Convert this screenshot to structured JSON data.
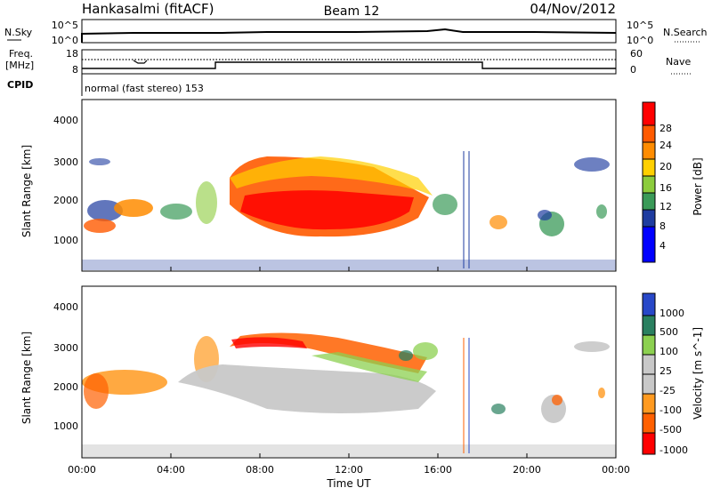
{
  "header": {
    "station": "Hankasalmi (fitACF)",
    "beam": "Beam 12",
    "date": "04/Nov/2012"
  },
  "noise_panel": {
    "left_label": "N.Sky",
    "right_label": "N.Search",
    "left_ticks": [
      "10^5",
      "10^0"
    ],
    "right_ticks": [
      "10^5",
      "10^0"
    ]
  },
  "freq_panel": {
    "left_label_line1": "Freq.",
    "left_label_line2": "[MHz]",
    "right_label": "Nave",
    "left_ticks": [
      "18",
      "8"
    ],
    "right_ticks": [
      "60",
      "0"
    ],
    "cpid_label": "CPID",
    "cpid_text": "normal (fast stereo) 153"
  },
  "chart_data": [
    {
      "type": "heatmap",
      "title": "",
      "ylabel": "Slant Range [km]",
      "ylim": [
        180,
        4600
      ],
      "yticks": [
        "4000",
        "3000",
        "2000",
        "1000"
      ],
      "colorbar_label": "Power [dB]",
      "colorbar_ticks": [
        "28",
        "24",
        "20",
        "16",
        "12",
        "8",
        "4"
      ],
      "colorbar_colors": [
        "#ff0000",
        "#ff5a00",
        "#ff8c00",
        "#ffd000",
        "#8ccc3c",
        "#3a9a58",
        "#1e3ca0",
        "#0000ff"
      ],
      "regions": [
        {
          "x": [
            0.1,
            5.5
          ],
          "y": [
            1500,
            2000
          ],
          "level": "low-mid"
        },
        {
          "x": [
            6.5,
            14.5
          ],
          "y": [
            1200,
            3000
          ],
          "level": "high"
        },
        {
          "x": [
            20.8,
            21.8
          ],
          "y": [
            1500,
            2100
          ],
          "level": "low"
        }
      ]
    },
    {
      "type": "heatmap",
      "title": "",
      "xlabel": "Time UT",
      "ylabel": "Slant Range [km]",
      "xlim": [
        0,
        24
      ],
      "ylim": [
        180,
        4600
      ],
      "xticks": [
        "00:00",
        "04:00",
        "08:00",
        "12:00",
        "16:00",
        "20:00",
        "00:00"
      ],
      "yticks": [
        "4000",
        "3000",
        "2000",
        "1000"
      ],
      "colorbar_label": "Velocity [m s^-1]",
      "colorbar_ticks": [
        "1000",
        "500",
        "100",
        "25",
        "-25",
        "-100",
        "-500",
        "-1000"
      ],
      "colorbar_colors": [
        "#2848c8",
        "#2a8060",
        "#8cd050",
        "#c8c8c8",
        "#c8c8c8",
        "#ff9a20",
        "#ff6000",
        "#ff0000"
      ],
      "regions": [
        {
          "x": [
            0.1,
            5.5
          ],
          "y": [
            1500,
            2000
          ],
          "level": "negative"
        },
        {
          "x": [
            5.5,
            15.5
          ],
          "y": [
            1200,
            2200
          ],
          "level": "ground-scatter"
        },
        {
          "x": [
            6.5,
            14.5
          ],
          "y": [
            2200,
            3100
          ],
          "level": "negative"
        }
      ]
    }
  ]
}
